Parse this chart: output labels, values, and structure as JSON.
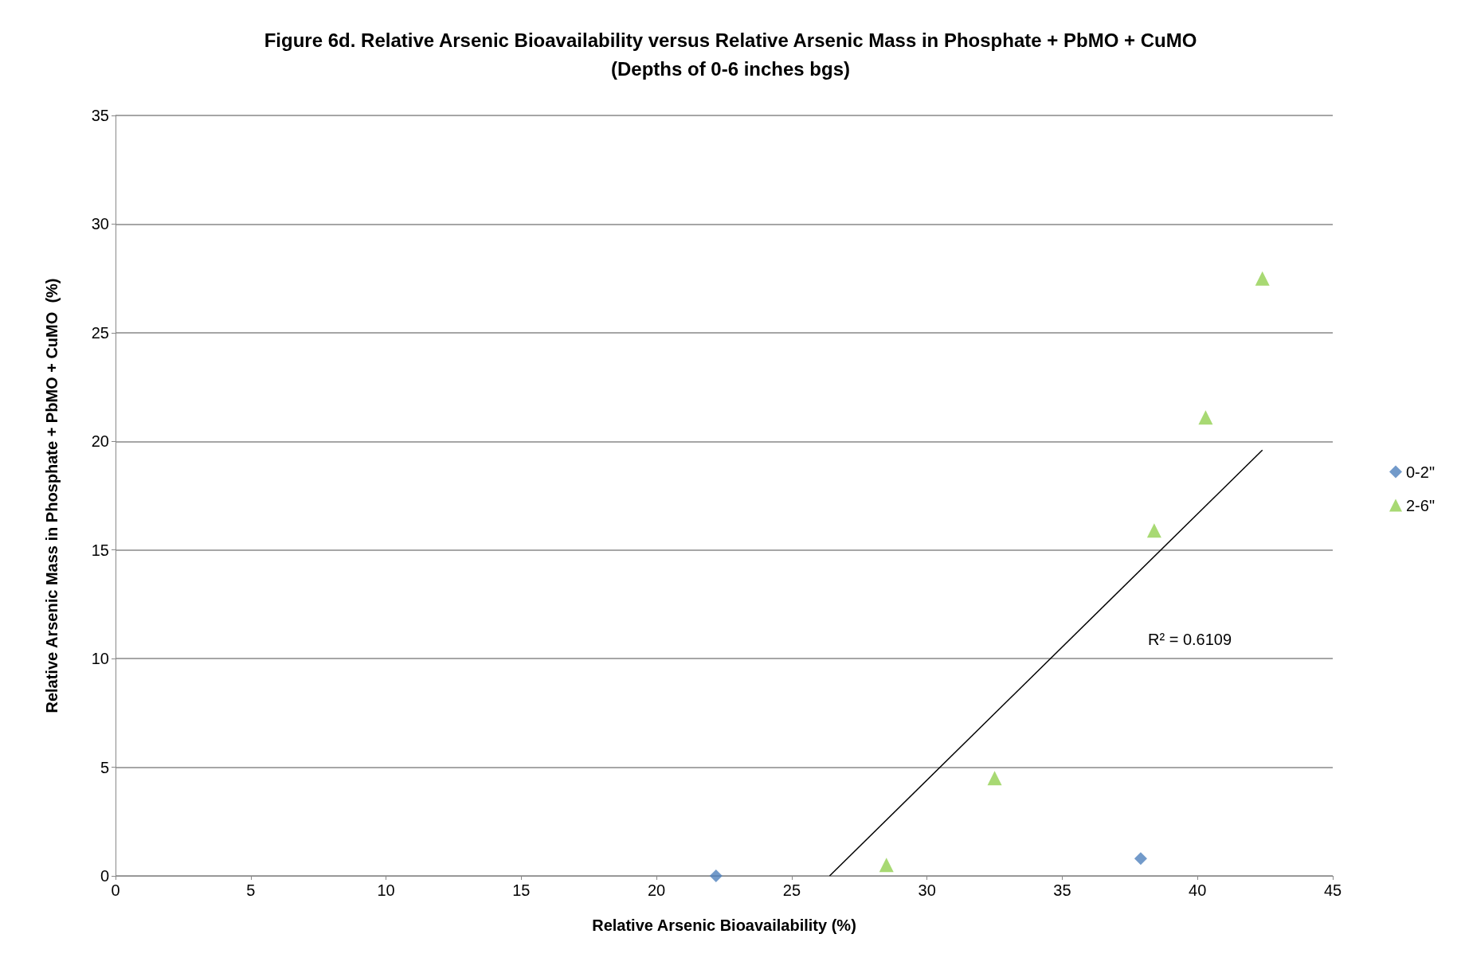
{
  "chart_data": {
    "type": "scatter",
    "title": "Figure 6d. Relative Arsenic Bioavailability versus Relative Arsenic Mass in Phosphate + PbMO + CuMO",
    "subtitle": "(Depths of 0-6 inches bgs)",
    "xlabel": "Relative Arsenic Bioavailability (%)",
    "ylabel": "Relative Arsenic Mass in Phosphate + PbMO + CuMO  (%)",
    "xlim": [
      0,
      45
    ],
    "xticks": [
      0,
      5,
      10,
      15,
      20,
      25,
      30,
      35,
      40,
      45
    ],
    "ylim": [
      0,
      35
    ],
    "yticks": [
      0,
      5,
      10,
      15,
      20,
      25,
      30,
      35
    ],
    "grid": "y",
    "legend": "right",
    "series": [
      {
        "name": "0-2\"",
        "color": "#4f81bd",
        "marker": "diamond",
        "x": [
          22.2,
          37.9
        ],
        "values": [
          0,
          0.8
        ]
      },
      {
        "name": "2-6\"",
        "color": "#92d050",
        "marker": "triangle",
        "x": [
          28.5,
          32.5,
          38.4,
          40.3,
          42.4
        ],
        "values": [
          0.5,
          4.5,
          15.9,
          21.1,
          27.5
        ]
      },
      {
        "type": "line",
        "color": "#000000",
        "marker": "none",
        "x": [
          26.4,
          42.4
        ],
        "values": [
          0,
          19.6
        ]
      }
    ],
    "annotations": [
      "R² = 0.6109"
    ]
  }
}
